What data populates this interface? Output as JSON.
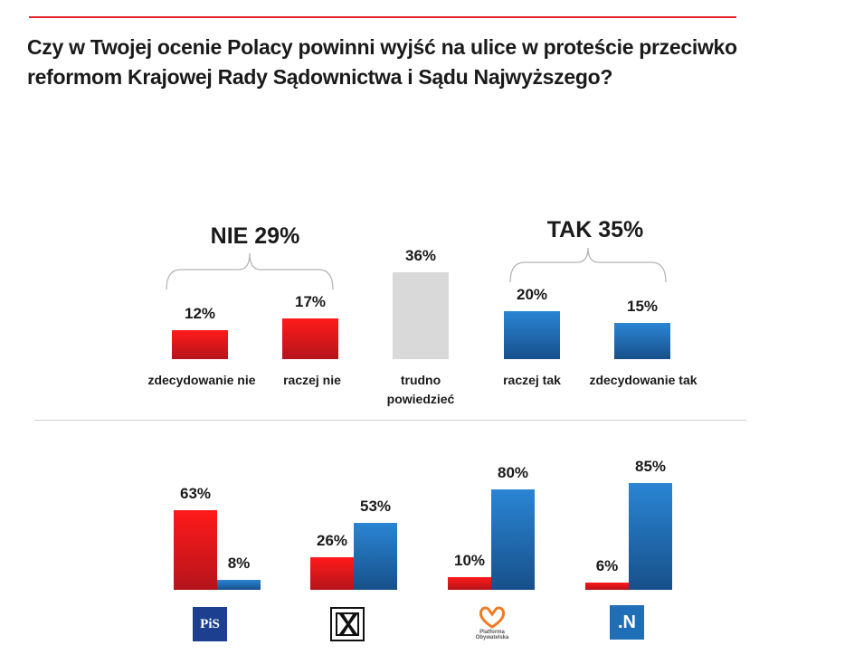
{
  "title": "Czy w Twojej ocenie Polacy powinni wyjść na ulice w proteście przeciwko reformom Krajowej Rady Sądownictwa i Sądu Najwyższego?",
  "colors": {
    "red": "#e0242c",
    "blue": "#1f6fb8",
    "gray": "#d9d9d9",
    "accent_rule": "#e0242c"
  },
  "chart_data": [
    {
      "type": "bar",
      "categories": [
        "zdecydowanie nie",
        "raczej nie",
        "trudno powiedzieć",
        "raczej tak",
        "zdecydowanie tak"
      ],
      "values": [
        12,
        17,
        36,
        20,
        15
      ],
      "value_labels": [
        "12%",
        "17%",
        "36%",
        "20%",
        "15%"
      ],
      "bar_colors": [
        "#e0242c",
        "#e0242c",
        "#d9d9d9",
        "#1f6fb8",
        "#1f6fb8"
      ],
      "groups": [
        {
          "label": "NIE 29%",
          "color": "#e0242c",
          "categories": [
            "zdecydowanie nie",
            "raczej nie"
          ]
        },
        {
          "label": "TAK 35%",
          "color": "#1f6fb8",
          "categories": [
            "raczej tak",
            "zdecydowanie tak"
          ]
        }
      ],
      "ylim": [
        0,
        40
      ],
      "grid": false
    },
    {
      "type": "bar",
      "categories": [
        "PiS",
        "Kukiz'15",
        "Platforma Obywatelska",
        "Nowoczesna"
      ],
      "series": [
        {
          "color": "#e0242c",
          "values": [
            63,
            26,
            10,
            6
          ],
          "value_labels": [
            "63%",
            "26%",
            "10%",
            "6%"
          ]
        },
        {
          "color": "#1f6fb8",
          "values": [
            8,
            53,
            80,
            85
          ],
          "value_labels": [
            "8%",
            "53%",
            "80%",
            "85%"
          ]
        }
      ],
      "ylim": [
        0,
        100
      ],
      "grid": false
    }
  ],
  "logos": {
    "pis": {
      "icon": "pis-logo-icon",
      "text": "PiS"
    },
    "kukiz": {
      "icon": "kukiz-logo-icon"
    },
    "po": {
      "icon": "po-heart-logo-icon",
      "text_line1": "Platforma",
      "text_line2": "Obywatelska"
    },
    "nowoczesna": {
      "icon": "nowoczesna-logo-icon",
      "text": ".N"
    }
  }
}
